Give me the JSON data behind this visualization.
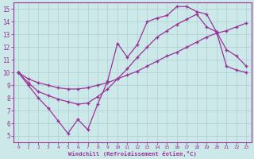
{
  "xlabel": "Windchill (Refroidissement éolien,°C)",
  "bg_color": "#cce8e8",
  "grid_color": "#aad0d0",
  "line_color": "#993399",
  "xlim": [
    -0.5,
    23.5
  ],
  "ylim": [
    4.5,
    15.5
  ],
  "xticks": [
    0,
    1,
    2,
    3,
    4,
    5,
    6,
    7,
    8,
    9,
    10,
    11,
    12,
    13,
    14,
    15,
    16,
    17,
    18,
    19,
    20,
    21,
    22,
    23
  ],
  "yticks": [
    5,
    6,
    7,
    8,
    9,
    10,
    11,
    12,
    13,
    14,
    15
  ],
  "line1_x": [
    0,
    1,
    2,
    3,
    4,
    5,
    6,
    7,
    8,
    9,
    10,
    11,
    12,
    13,
    14,
    15,
    16,
    17,
    18,
    19,
    20,
    21,
    22,
    23
  ],
  "line1_y": [
    10.0,
    9.0,
    8.0,
    7.2,
    6.2,
    5.2,
    6.3,
    5.5,
    7.5,
    9.3,
    12.3,
    11.2,
    12.2,
    14.0,
    14.3,
    14.5,
    15.2,
    15.2,
    14.8,
    14.6,
    13.2,
    10.5,
    10.2,
    10.0
  ],
  "line2_x": [
    0,
    1,
    2,
    3,
    4,
    5,
    6,
    7,
    8,
    9,
    10,
    11,
    12,
    13,
    14,
    15,
    16,
    17,
    18,
    19,
    20,
    21,
    22,
    23
  ],
  "line2_y": [
    10.0,
    9.5,
    9.2,
    9.0,
    8.8,
    8.7,
    8.7,
    8.8,
    9.0,
    9.2,
    9.5,
    9.8,
    10.1,
    10.5,
    10.9,
    11.3,
    11.6,
    12.0,
    12.4,
    12.8,
    13.1,
    13.3,
    13.6,
    13.9
  ],
  "line3_x": [
    0,
    1,
    2,
    3,
    4,
    5,
    6,
    7,
    8,
    9,
    10,
    11,
    12,
    13,
    14,
    15,
    16,
    17,
    18,
    19,
    20,
    21,
    22,
    23
  ],
  "line3_y": [
    10.0,
    9.2,
    8.5,
    8.2,
    7.9,
    7.7,
    7.5,
    7.6,
    8.1,
    8.7,
    9.5,
    10.3,
    11.2,
    12.0,
    12.8,
    13.3,
    13.8,
    14.2,
    14.6,
    13.6,
    13.2,
    11.8,
    11.3,
    10.5
  ]
}
